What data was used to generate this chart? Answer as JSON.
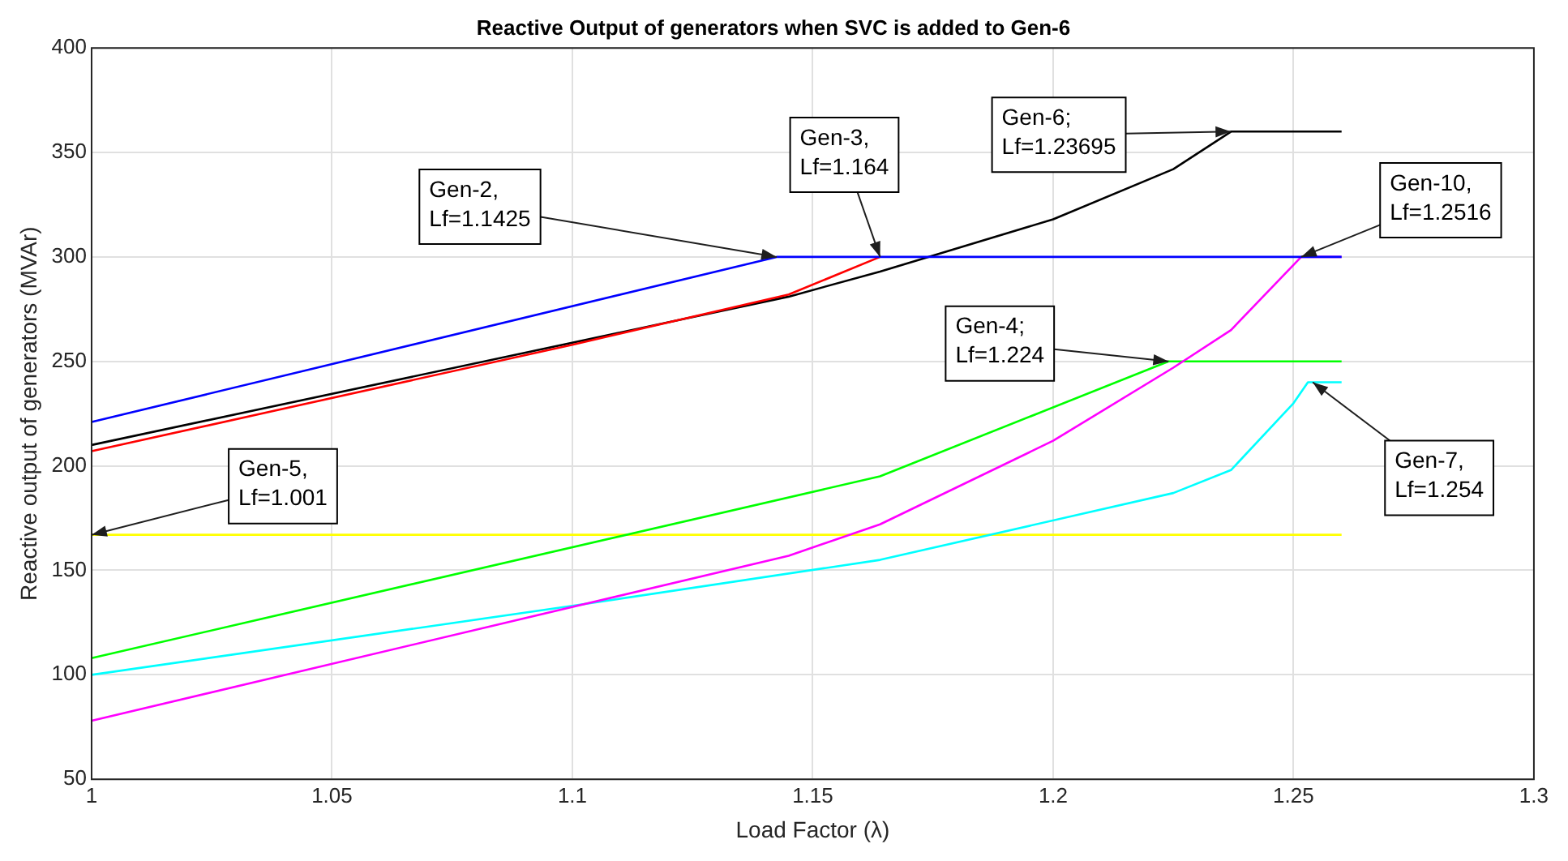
{
  "chart_data": {
    "type": "line",
    "title": "Reactive Output of generators when SVC is added to Gen-6",
    "xlabel": "Load Factor (λ)",
    "ylabel": "Reactive output of generators (MVAr)",
    "xlim": [
      1,
      1.3
    ],
    "xticks": [
      1,
      1.05,
      1.1,
      1.15,
      1.2,
      1.25,
      1.3
    ],
    "ylim": [
      50,
      400
    ],
    "yticks": [
      50,
      100,
      150,
      200,
      250,
      300,
      350,
      400
    ],
    "grid": true,
    "legend": false,
    "marker": "none",
    "line_style": "solid",
    "series": [
      {
        "color": "#0000ff",
        "x": [
          1,
          1.1425,
          1.26
        ],
        "values": [
          221,
          300,
          300
        ]
      },
      {
        "color": "#ff0000",
        "x": [
          1,
          1.1,
          1.145,
          1.164
        ],
        "values": [
          207,
          258,
          282,
          300
        ]
      },
      {
        "color": "#000000",
        "x": [
          1,
          1.145,
          1.164,
          1.2,
          1.225,
          1.237,
          1.26
        ],
        "values": [
          210,
          281,
          293,
          318,
          342,
          360,
          360
        ]
      },
      {
        "color": "#ff00ff",
        "x": [
          1,
          1.145,
          1.164,
          1.2,
          1.225,
          1.237,
          1.2516,
          1.26
        ],
        "values": [
          78,
          157,
          172,
          212,
          247,
          265,
          300,
          300
        ]
      },
      {
        "color": "#00ff00",
        "x": [
          1,
          1.164,
          1.224,
          1.26
        ],
        "values": [
          108,
          195,
          250,
          250
        ]
      },
      {
        "color": "#00ffff",
        "x": [
          1,
          1.1,
          1.164,
          1.225,
          1.237,
          1.25,
          1.253,
          1.26
        ],
        "values": [
          100,
          133,
          155,
          187,
          198,
          230,
          240,
          240
        ]
      },
      {
        "color": "#ffff00",
        "x": [
          1,
          1.26
        ],
        "values": [
          167,
          167
        ]
      }
    ],
    "annotations": [
      {
        "text": "Gen-2,\nLf=1.1425",
        "x": 1.1425,
        "y": 300
      },
      {
        "text": "Gen-3,\nLf=1.164",
        "x": 1.164,
        "y": 300
      },
      {
        "text": "Gen-6;\nLf=1.23695",
        "x": 1.23695,
        "y": 360
      },
      {
        "text": "Gen-10,\nLf=1.2516",
        "x": 1.2516,
        "y": 300
      },
      {
        "text": "Gen-4;\nLf=1.224",
        "x": 1.224,
        "y": 250
      },
      {
        "text": "Gen-7,\nLf=1.254",
        "x": 1.254,
        "y": 240
      },
      {
        "text": "Gen-5,\nLf=1.001",
        "x": 1,
        "y": 167
      }
    ]
  }
}
